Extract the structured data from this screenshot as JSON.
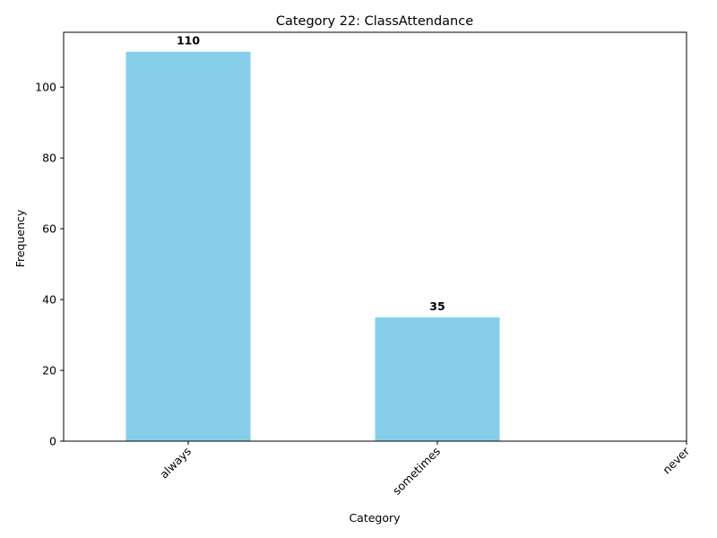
{
  "chart_data": {
    "type": "bar",
    "title": "Category 22: ClassAttendance",
    "xlabel": "Category",
    "ylabel": "Frequency",
    "categories": [
      "always",
      "sometimes",
      "never"
    ],
    "values": [
      110,
      35,
      0
    ],
    "data_labels": [
      "110",
      "35",
      ""
    ],
    "yticks": [
      0,
      20,
      40,
      60,
      80,
      100
    ],
    "ylim": [
      0,
      115.5
    ],
    "bar_color": "#87CEEB",
    "grid": false
  }
}
